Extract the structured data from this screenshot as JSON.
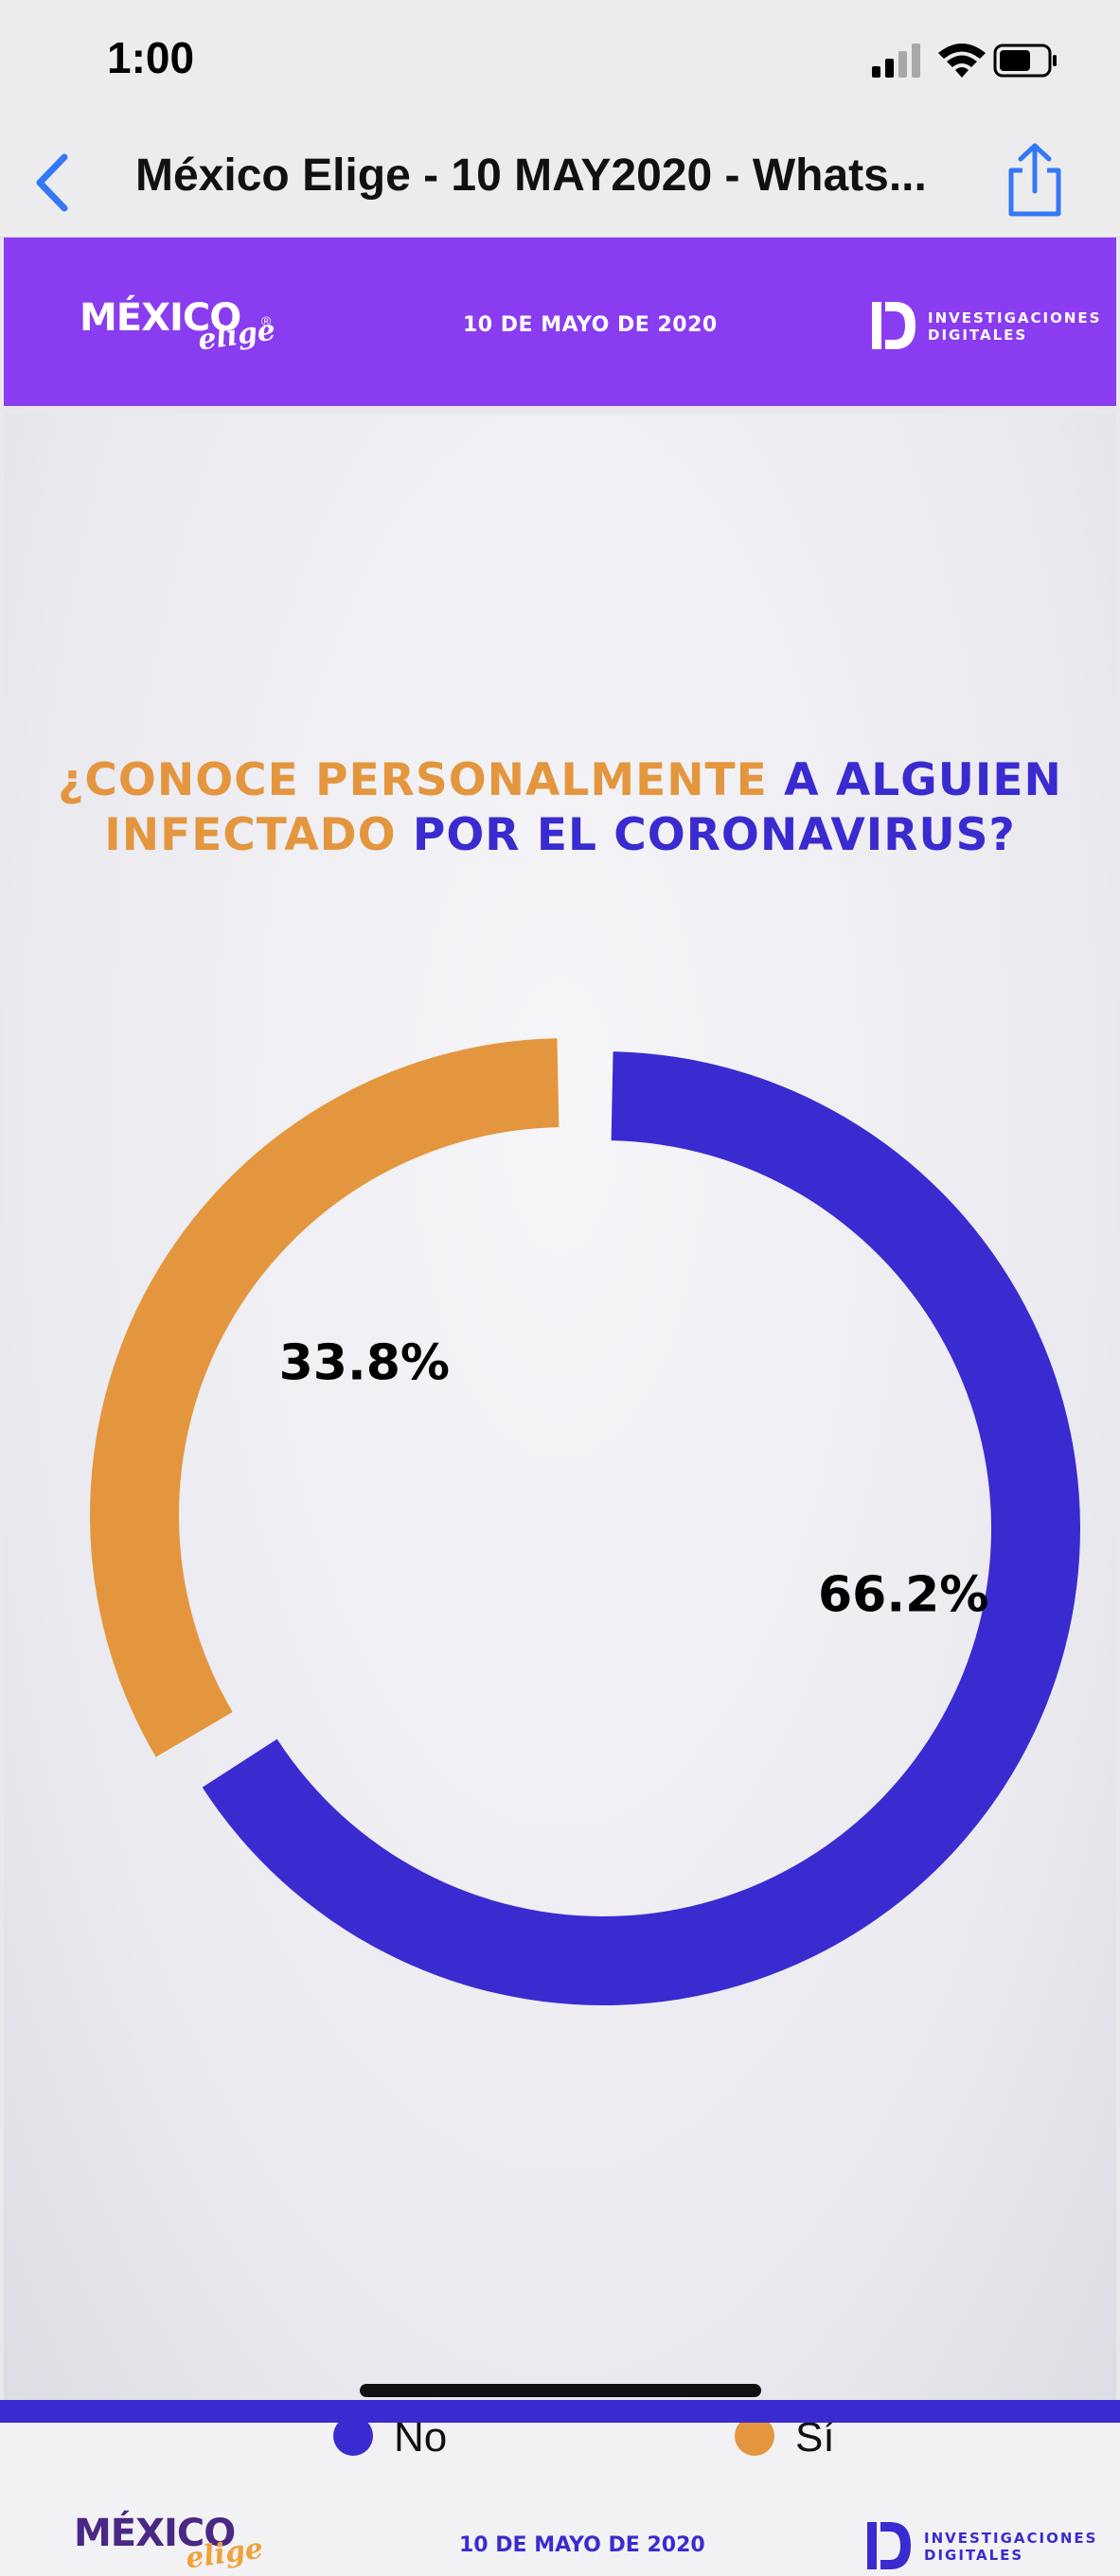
{
  "status_bar": {
    "time": "1:00",
    "icons": [
      "cellular-signal-icon",
      "wifi-icon",
      "battery-icon"
    ]
  },
  "nav": {
    "title": "México Elige - 10 MAY2020 - Whats...",
    "back_icon": "chevron-left-icon",
    "share_icon": "share-icon"
  },
  "header": {
    "brand": "MÉXICO",
    "brand_script": "elige",
    "brand_mark": "®",
    "date": "10 DE MAYO DE 2020",
    "partner_line1": "INVESTIGACIONES",
    "partner_line2": "DIGITALES"
  },
  "slide": {
    "question_line1_a": "¿CONOCE PERSONALMENTE",
    "question_line1_b": " A ALGUIEN",
    "question_line2_a": "INFECTADO",
    "question_line2_b": " POR EL CORONAVIRUS?"
  },
  "chart_data": {
    "type": "pie",
    "donut": true,
    "categories": [
      "No",
      "Sí"
    ],
    "values": [
      66.2,
      33.8
    ],
    "data_labels": [
      "66.2%",
      "33.8%"
    ],
    "colors": [
      "#3a2bd0",
      "#e4963e"
    ],
    "legend_position": "bottom"
  },
  "legend": [
    {
      "label": "No",
      "color": "#3a2bd0"
    },
    {
      "label": "Sí",
      "color": "#e4963e"
    }
  ],
  "footer": {
    "brand": "MÉXICO",
    "brand_script": "elige",
    "date": "10 DE MAYO DE 2020",
    "partner_line1": "INVESTIGACIONES",
    "partner_line2": "DIGITALES"
  },
  "colors": {
    "accent_purple": "#8a3cf0",
    "blue": "#3a2bd0",
    "orange": "#e4963e",
    "ios_blue": "#3478f6"
  }
}
